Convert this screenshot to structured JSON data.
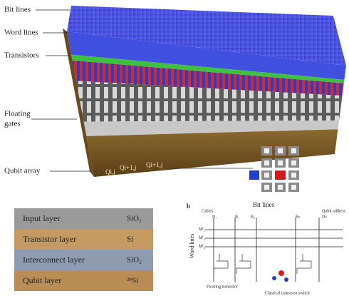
{
  "panel_a": {
    "labels": [
      "Bit lines",
      "Word lines",
      "Transistors",
      "Floating",
      "gates",
      "Qubit array"
    ],
    "qubit_labels": [
      "Qi,j",
      "Qi+1,j",
      "Qi+1,j"
    ]
  },
  "panel_layers": {
    "layers": [
      {
        "name": "Input layer",
        "material": "SiO₂"
      },
      {
        "name": "Transistor layer",
        "material": "Si"
      },
      {
        "name": "Interconnect layer",
        "material": "SiO₂"
      },
      {
        "name": "Qubit layer",
        "material": "²⁸Si"
      }
    ]
  },
  "panel_b": {
    "letter": "b",
    "title": "Bit lines",
    "axis_label": "Word lines",
    "column_labels": [
      "Cables",
      "D₁",
      "B₁",
      "B₂",
      "Bₙ",
      "Qubit address",
      "Dₙ"
    ],
    "row_labels": [
      "W₁",
      "W₂",
      "W₃"
    ],
    "annotations": [
      "Floating transistor",
      "Classical transistor switch"
    ]
  }
}
